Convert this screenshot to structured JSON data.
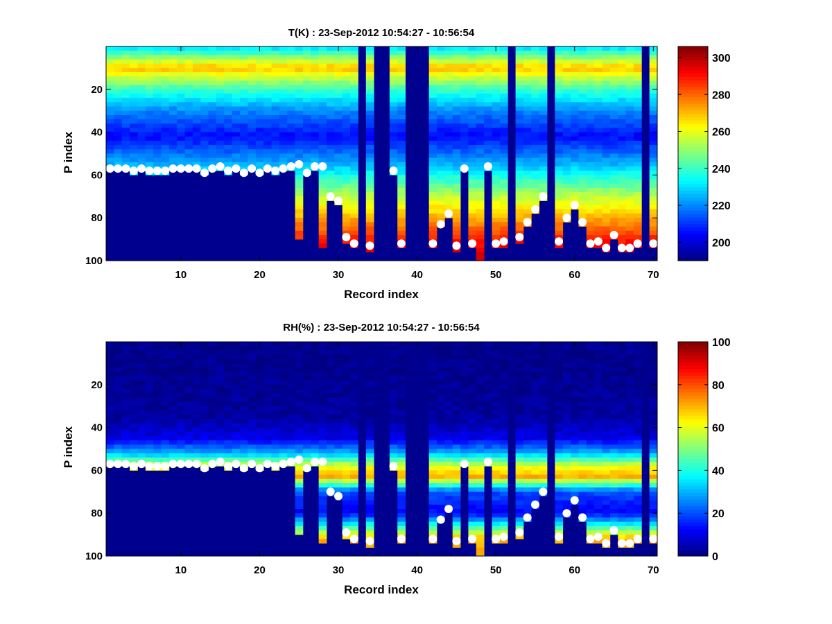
{
  "figure": {
    "background": "#ffffff"
  },
  "chart_data": [
    {
      "type": "heatmap",
      "title": "T(K) : 23-Sep-2012 10:54:27 - 10:56:54",
      "xlabel": "Record index",
      "ylabel": "P index",
      "xlim": [
        0.5,
        70.5
      ],
      "ylim": [
        0,
        100
      ],
      "y_reversed": true,
      "xticks": [
        10,
        20,
        30,
        40,
        50,
        60,
        70
      ],
      "yticks": [
        20,
        40,
        60,
        80,
        100
      ],
      "colormap": "jet",
      "colorbar": {
        "range": [
          190,
          306
        ],
        "ticks": [
          200,
          220,
          240,
          260,
          280,
          300
        ]
      },
      "profile": {
        "description": "Temperature decreases from ~235 K near P 0-5 to a warm band ~265-275 K at P 8-12, cooling to ~205 K near P 40-45, then warming toward 285-300 K near the surface",
        "key_points_P": [
          1,
          10,
          20,
          30,
          42,
          55,
          70,
          85,
          95
        ],
        "key_values_K": [
          232,
          270,
          240,
          220,
          205,
          225,
          255,
          280,
          295
        ]
      },
      "missing_records": [
        33,
        35,
        36,
        39,
        40,
        41,
        52,
        57,
        69
      ],
      "surface_marker_color": "#ffffff"
    },
    {
      "type": "heatmap",
      "title": "RH(%) : 23-Sep-2012 10:54:27 - 10:56:54",
      "xlabel": "Record index",
      "ylabel": "P index",
      "xlim": [
        0.5,
        70.5
      ],
      "ylim": [
        0,
        100
      ],
      "y_reversed": true,
      "xticks": [
        10,
        20,
        30,
        40,
        50,
        60,
        70
      ],
      "yticks": [
        20,
        40,
        60,
        80,
        100
      ],
      "colormap": "jet",
      "colorbar": {
        "range": [
          0,
          100
        ],
        "ticks": [
          0,
          20,
          40,
          60,
          80,
          100
        ]
      },
      "profile": {
        "description": "Dry (~0-5%) above P 35, increasing to a moist band ~55-75% around P 55-68, then drier (~10-20%) below P 70 and moist again (~60-100%) right above the surface in some records",
        "key_points_P": [
          10,
          35,
          45,
          52,
          58,
          63,
          70,
          80,
          92
        ],
        "key_values_pct": [
          1,
          3,
          10,
          30,
          60,
          70,
          20,
          12,
          70
        ]
      },
      "missing_records": [
        33,
        35,
        36,
        39,
        40,
        41,
        52,
        57,
        69
      ],
      "surface_marker_color": "#ffffff"
    }
  ],
  "surface_markers": {
    "records": [
      1,
      2,
      3,
      4,
      5,
      6,
      7,
      8,
      9,
      10,
      11,
      12,
      13,
      14,
      15,
      16,
      17,
      18,
      19,
      20,
      21,
      22,
      23,
      24,
      25,
      26,
      27,
      28,
      29,
      30,
      31,
      32,
      34,
      37,
      38,
      42,
      43,
      44,
      45,
      46,
      47,
      49,
      50,
      51,
      53,
      54,
      55,
      56,
      58,
      59,
      60,
      61,
      62,
      63,
      64,
      65,
      66,
      67,
      68,
      70
    ],
    "p_index": [
      57,
      57,
      57,
      58,
      57,
      58,
      58,
      58,
      57,
      57,
      57,
      57,
      59,
      57,
      56,
      58,
      57,
      59,
      57,
      59,
      57,
      58,
      57,
      56,
      55,
      59,
      56,
      56,
      70,
      72,
      89,
      92,
      93,
      58,
      92,
      92,
      83,
      78,
      93,
      57,
      92,
      56,
      92,
      91,
      89,
      82,
      76,
      70,
      91,
      80,
      74,
      82,
      92,
      91,
      94,
      88,
      94,
      94,
      92,
      92
    ]
  },
  "valid_bottoms": {
    "records": [
      25,
      28
    ],
    "p_index": [
      89,
      94
    ]
  }
}
